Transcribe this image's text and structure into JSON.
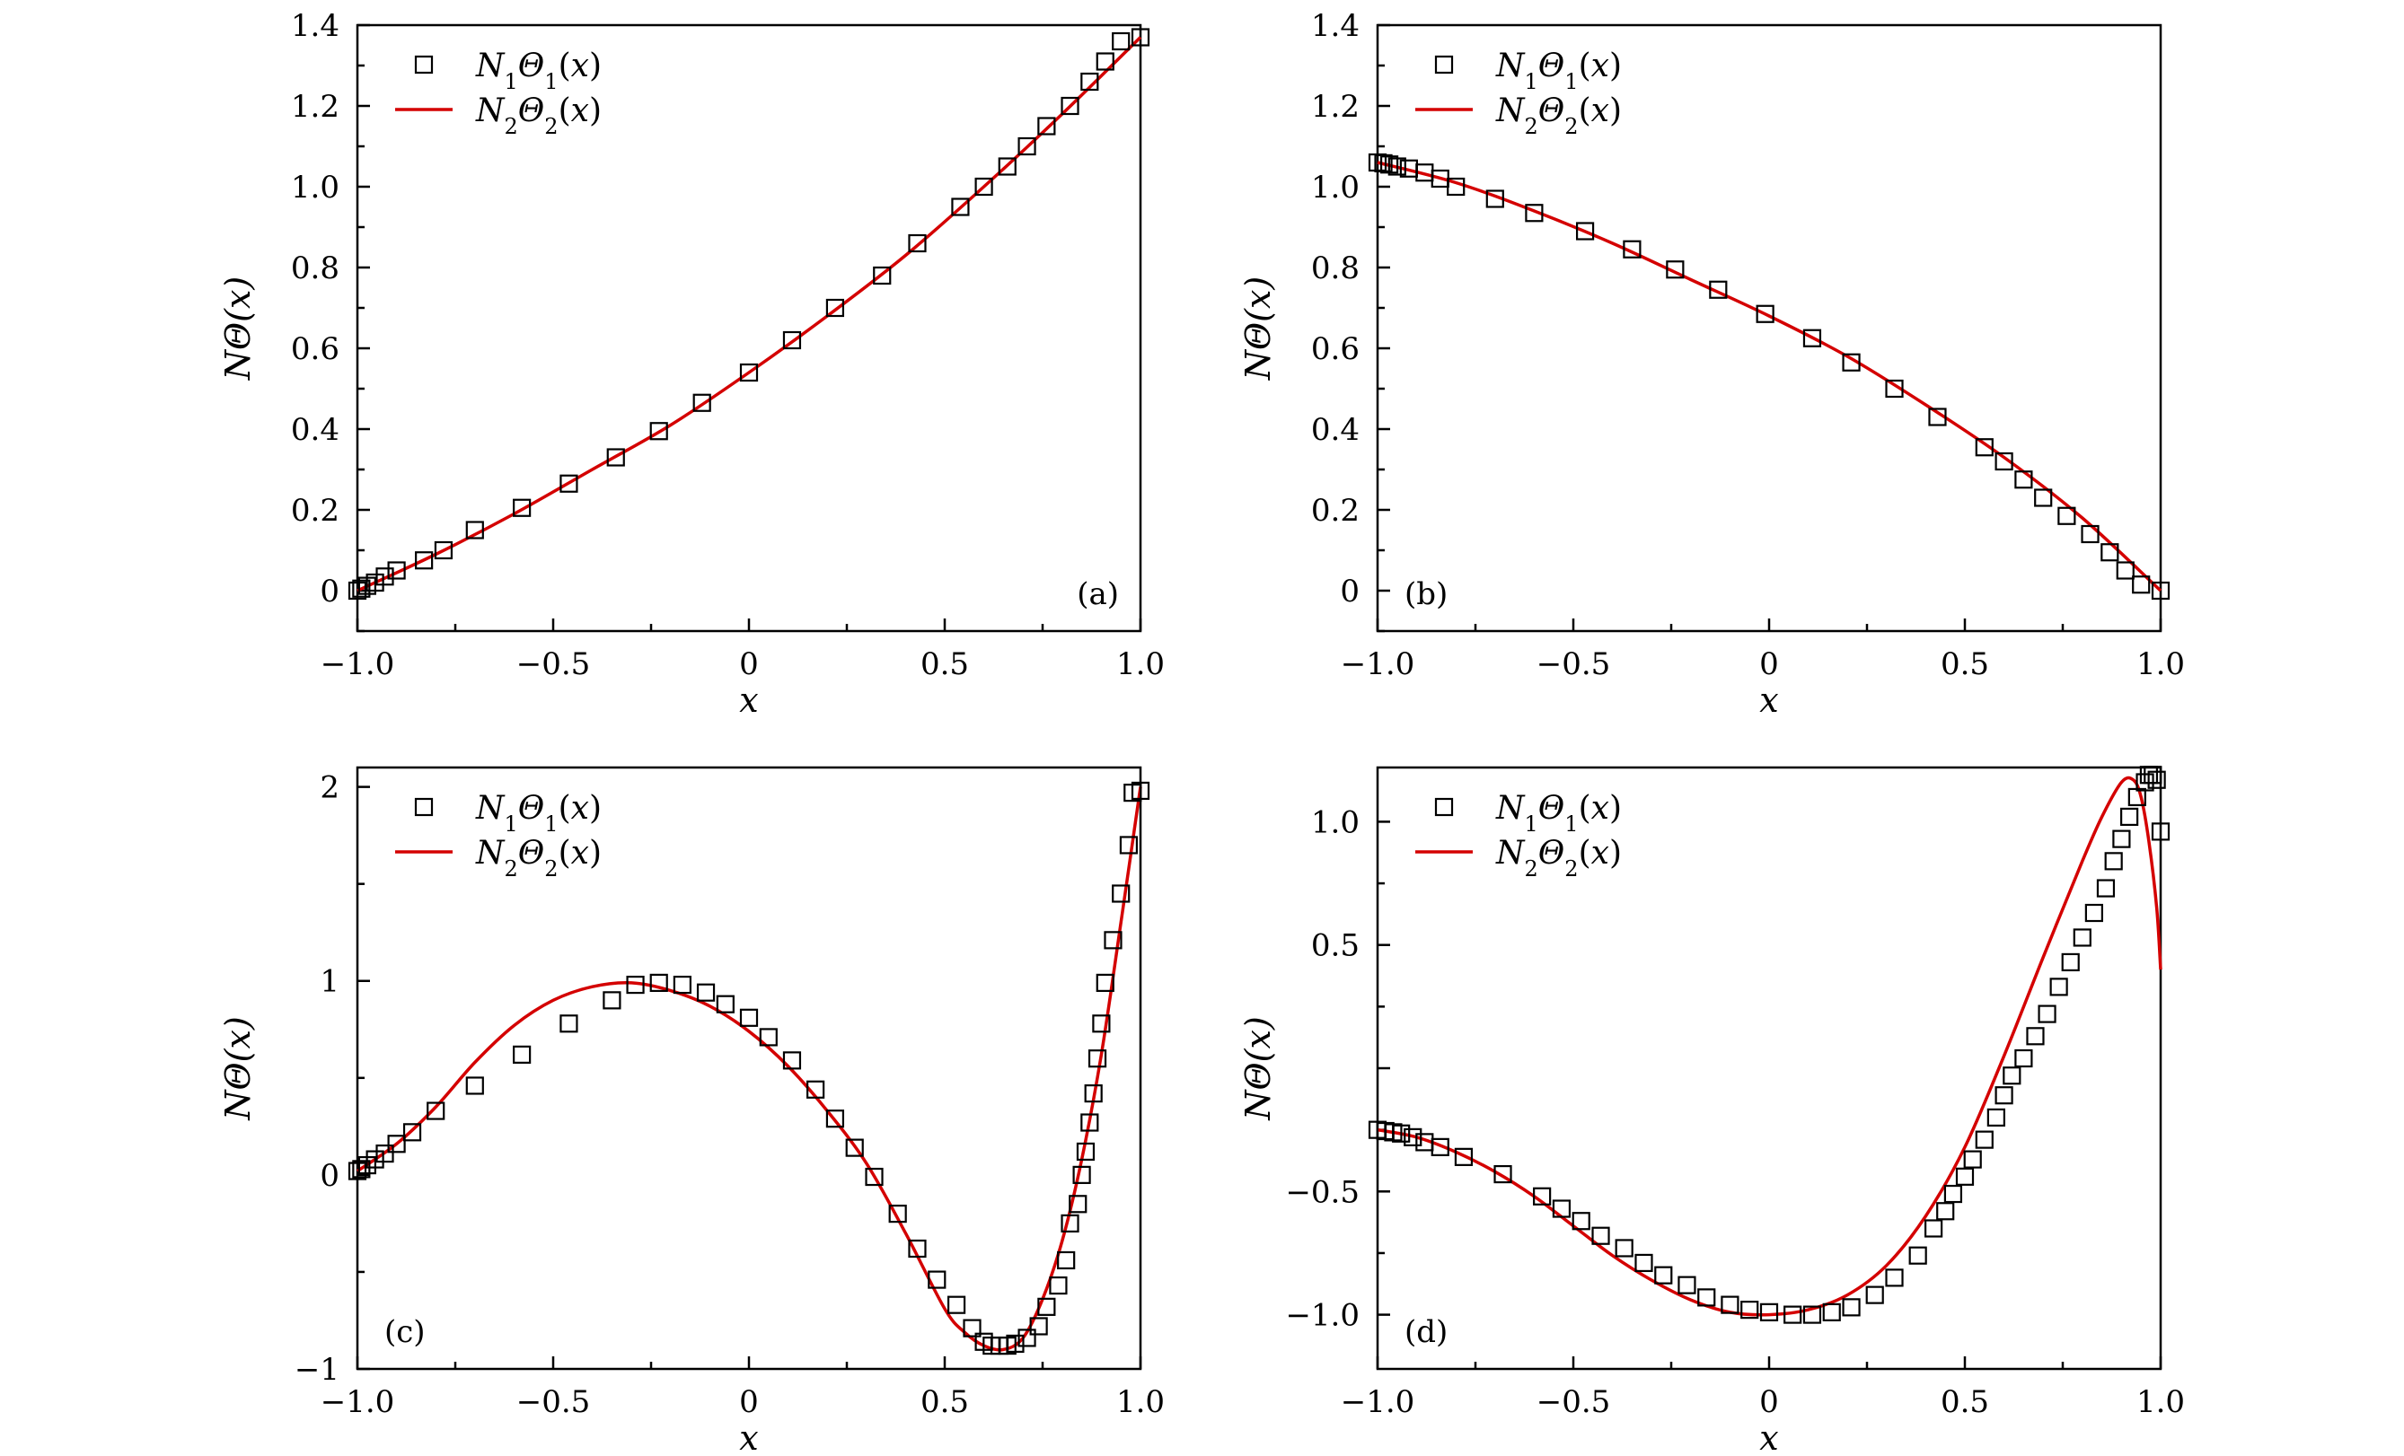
{
  "colors": {
    "curve": "#d40000",
    "marker_edge": "#000000",
    "frame": "#000000"
  },
  "legend": {
    "marker_icon": "open-square-marker-icon",
    "line_icon": "red-line-icon",
    "marker_series_html": "N<tspan baseline-shift=\"sub\" font-size=\"24\" font-style=\"normal\">1</tspan>Θ<tspan baseline-shift=\"sub\" font-size=\"24\" font-style=\"normal\">1</tspan><tspan font-style=\"normal\">(</tspan>x<tspan font-style=\"normal\">)</tspan>",
    "line_series_html": "N<tspan baseline-shift=\"sub\" font-size=\"24\" font-style=\"normal\">2</tspan>Θ<tspan baseline-shift=\"sub\" font-size=\"24\" font-style=\"normal\">2</tspan><tspan font-style=\"normal\">(</tspan>x<tspan font-style=\"normal\">)</tspan>"
  },
  "chart_data": [
    {
      "id": "a",
      "type": "line",
      "tag": "(a)",
      "xlabel": "x",
      "ylabel": "NΘ(x)",
      "xlim": [
        -1.0,
        1.0
      ],
      "ylim": [
        -0.1,
        1.4
      ],
      "xticks": [
        -1.0,
        -0.5,
        0,
        0.5,
        1.0
      ],
      "xtick_labels": [
        "−1.0",
        "−0.5",
        "0",
        "0.5",
        "1.0"
      ],
      "yticks": [
        0,
        0.2,
        0.4,
        0.6,
        0.8,
        1.0,
        1.2,
        1.4
      ],
      "ytick_labels": [
        "0",
        "0.2",
        "0.4",
        "0.6",
        "0.8",
        "1.0",
        "1.2",
        "1.4"
      ],
      "legend_position": "top-left",
      "tag_position": "bottom-right",
      "series": [
        {
          "name": "N1Θ1(x)",
          "style": "markers",
          "x": [
            -1.0,
            -0.99,
            -0.975,
            -0.955,
            -0.93,
            -0.9,
            -0.83,
            -0.78,
            -0.7,
            -0.58,
            -0.46,
            -0.34,
            -0.23,
            -0.12,
            0.0,
            0.11,
            0.22,
            0.34,
            0.43,
            0.54,
            0.6,
            0.66,
            0.71,
            0.76,
            0.82,
            0.87,
            0.91,
            0.95,
            1.0
          ],
          "y": [
            0.0,
            0.005,
            0.012,
            0.02,
            0.035,
            0.05,
            0.075,
            0.1,
            0.15,
            0.205,
            0.265,
            0.33,
            0.395,
            0.465,
            0.54,
            0.62,
            0.7,
            0.78,
            0.86,
            0.95,
            1.0,
            1.05,
            1.1,
            1.15,
            1.2,
            1.26,
            1.31,
            1.36,
            1.37
          ]
        },
        {
          "name": "N2Θ2(x)",
          "style": "line",
          "x": [
            -1.0,
            -0.8,
            -0.6,
            -0.4,
            -0.2,
            0.0,
            0.2,
            0.4,
            0.6,
            0.8,
            1.0
          ],
          "y": [
            0.0,
            0.09,
            0.19,
            0.3,
            0.41,
            0.54,
            0.68,
            0.83,
            1.0,
            1.18,
            1.37
          ]
        }
      ]
    },
    {
      "id": "b",
      "type": "line",
      "tag": "(b)",
      "xlabel": "x",
      "ylabel": "NΘ(x)",
      "xlim": [
        -1.0,
        1.0
      ],
      "ylim": [
        -0.1,
        1.4
      ],
      "xticks": [
        -1.0,
        -0.5,
        0,
        0.5,
        1.0
      ],
      "xtick_labels": [
        "−1.0",
        "−0.5",
        "0",
        "0.5",
        "1.0"
      ],
      "yticks": [
        0,
        0.2,
        0.4,
        0.6,
        0.8,
        1.0,
        1.2,
        1.4
      ],
      "ytick_labels": [
        "0",
        "0.2",
        "0.4",
        "0.6",
        "0.8",
        "1.0",
        "1.2",
        "1.4"
      ],
      "legend_position": "top-left",
      "tag_position": "bottom-left",
      "series": [
        {
          "name": "N1Θ1(x)",
          "style": "markers",
          "x": [
            -1.0,
            -0.985,
            -0.97,
            -0.95,
            -0.92,
            -0.88,
            -0.84,
            -0.8,
            -0.7,
            -0.6,
            -0.47,
            -0.35,
            -0.24,
            -0.13,
            -0.01,
            0.11,
            0.21,
            0.32,
            0.43,
            0.55,
            0.6,
            0.65,
            0.7,
            0.76,
            0.82,
            0.87,
            0.91,
            0.95,
            1.0
          ],
          "y": [
            1.06,
            1.058,
            1.055,
            1.05,
            1.045,
            1.035,
            1.02,
            1.0,
            0.97,
            0.935,
            0.89,
            0.845,
            0.795,
            0.745,
            0.685,
            0.625,
            0.565,
            0.5,
            0.43,
            0.355,
            0.32,
            0.275,
            0.23,
            0.185,
            0.14,
            0.095,
            0.05,
            0.015,
            0.0
          ]
        },
        {
          "name": "N2Θ2(x)",
          "style": "line",
          "x": [
            -1.0,
            -0.8,
            -0.6,
            -0.4,
            -0.2,
            0.0,
            0.2,
            0.4,
            0.6,
            0.8,
            1.0
          ],
          "y": [
            1.06,
            1.01,
            0.94,
            0.86,
            0.77,
            0.68,
            0.58,
            0.46,
            0.33,
            0.18,
            0.0
          ]
        }
      ]
    },
    {
      "id": "c",
      "type": "line",
      "tag": "(c)",
      "xlabel": "x",
      "ylabel": "NΘ(x)",
      "xlim": [
        -1.0,
        1.0
      ],
      "ylim": [
        -1.0,
        2.1
      ],
      "xticks": [
        -1.0,
        -0.5,
        0,
        0.5,
        1.0
      ],
      "xtick_labels": [
        "−1.0",
        "−0.5",
        "0",
        "0.5",
        "1.0"
      ],
      "yticks": [
        -1,
        0,
        1,
        2
      ],
      "ytick_labels": [
        "−1",
        "0",
        "1",
        "2"
      ],
      "legend_position": "top-left",
      "tag_position": "bottom-left",
      "series": [
        {
          "name": "N1Θ1(x)",
          "style": "markers",
          "x": [
            -1.0,
            -0.99,
            -0.975,
            -0.955,
            -0.93,
            -0.9,
            -0.86,
            -0.8,
            -0.7,
            -0.58,
            -0.46,
            -0.35,
            -0.29,
            -0.23,
            -0.17,
            -0.11,
            -0.06,
            0.0,
            0.05,
            0.11,
            0.17,
            0.22,
            0.27,
            0.32,
            0.38,
            0.43,
            0.48,
            0.53,
            0.57,
            0.6,
            0.62,
            0.64,
            0.66,
            0.68,
            0.71,
            0.74,
            0.76,
            0.79,
            0.81,
            0.82,
            0.84,
            0.85,
            0.86,
            0.87,
            0.88,
            0.89,
            0.9,
            0.91,
            0.93,
            0.95,
            0.97,
            0.98,
            1.0
          ],
          "y": [
            0.02,
            0.03,
            0.05,
            0.08,
            0.11,
            0.16,
            0.22,
            0.33,
            0.46,
            0.62,
            0.78,
            0.9,
            0.98,
            0.99,
            0.98,
            0.94,
            0.88,
            0.81,
            0.71,
            0.59,
            0.44,
            0.29,
            0.14,
            -0.01,
            -0.2,
            -0.38,
            -0.54,
            -0.67,
            -0.79,
            -0.86,
            -0.88,
            -0.88,
            -0.88,
            -0.87,
            -0.84,
            -0.78,
            -0.68,
            -0.57,
            -0.44,
            -0.25,
            -0.15,
            0.0,
            0.12,
            0.27,
            0.42,
            0.6,
            0.78,
            0.99,
            1.21,
            1.45,
            1.7,
            1.97,
            1.98
          ]
        },
        {
          "name": "N2Θ2(x)",
          "style": "line",
          "x": [
            -1.0,
            -0.9,
            -0.8,
            -0.7,
            -0.6,
            -0.5,
            -0.4,
            -0.3,
            -0.2,
            -0.1,
            0.0,
            0.1,
            0.2,
            0.3,
            0.4,
            0.5,
            0.55,
            0.6,
            0.65,
            0.7,
            0.75,
            0.8,
            0.85,
            0.9,
            0.95,
            1.0
          ],
          "y": [
            0.02,
            0.16,
            0.35,
            0.58,
            0.77,
            0.9,
            0.97,
            0.99,
            0.95,
            0.87,
            0.74,
            0.56,
            0.33,
            0.06,
            -0.3,
            -0.69,
            -0.81,
            -0.88,
            -0.9,
            -0.84,
            -0.64,
            -0.34,
            0.08,
            0.62,
            1.3,
            2.0
          ]
        }
      ]
    },
    {
      "id": "d",
      "type": "line",
      "tag": "(d)",
      "xlabel": "x",
      "ylabel": "NΘ(x)",
      "xlim": [
        -1.0,
        1.0
      ],
      "ylim": [
        -1.22,
        1.22
      ],
      "xticks": [
        -1.0,
        -0.5,
        0,
        0.5,
        1.0
      ],
      "xtick_labels": [
        "−1.0",
        "−0.5",
        "0",
        "0.5",
        "1.0"
      ],
      "yticks": [
        -1.0,
        -0.5,
        0.5,
        1.0
      ],
      "ytick_labels": [
        "−1.0",
        "−0.5",
        "0.5",
        "1.0"
      ],
      "legend_position": "top-left",
      "tag_position": "bottom-left",
      "series": [
        {
          "name": "N1Θ1(x)",
          "style": "markers",
          "x": [
            -1.0,
            -0.98,
            -0.96,
            -0.94,
            -0.91,
            -0.88,
            -0.84,
            -0.78,
            -0.68,
            -0.58,
            -0.53,
            -0.48,
            -0.43,
            -0.37,
            -0.32,
            -0.27,
            -0.21,
            -0.16,
            -0.1,
            -0.05,
            0.0,
            0.06,
            0.11,
            0.16,
            0.21,
            0.27,
            0.32,
            0.38,
            0.42,
            0.45,
            0.47,
            0.5,
            0.52,
            0.55,
            0.58,
            0.6,
            0.62,
            0.65,
            0.68,
            0.71,
            0.74,
            0.77,
            0.8,
            0.83,
            0.86,
            0.88,
            0.9,
            0.92,
            0.94,
            0.96,
            0.97,
            0.98,
            0.99,
            1.0
          ],
          "y": [
            -0.25,
            -0.255,
            -0.26,
            -0.265,
            -0.28,
            -0.3,
            -0.32,
            -0.36,
            -0.43,
            -0.52,
            -0.57,
            -0.62,
            -0.68,
            -0.73,
            -0.79,
            -0.84,
            -0.88,
            -0.93,
            -0.96,
            -0.98,
            -0.99,
            -1.0,
            -1.0,
            -0.99,
            -0.97,
            -0.92,
            -0.85,
            -0.76,
            -0.65,
            -0.58,
            -0.51,
            -0.44,
            -0.37,
            -0.29,
            -0.2,
            -0.11,
            -0.03,
            0.04,
            0.13,
            0.22,
            0.33,
            0.43,
            0.53,
            0.63,
            0.73,
            0.84,
            0.93,
            1.02,
            1.1,
            1.16,
            1.19,
            1.19,
            1.17,
            0.96
          ]
        },
        {
          "name": "N2Θ2(x)",
          "style": "line",
          "x": [
            -1.0,
            -0.9,
            -0.8,
            -0.7,
            -0.6,
            -0.5,
            -0.4,
            -0.3,
            -0.2,
            -0.1,
            0.0,
            0.1,
            0.2,
            0.3,
            0.4,
            0.5,
            0.6,
            0.7,
            0.8,
            0.85,
            0.9,
            0.93,
            0.95,
            0.97,
            0.99,
            1.0
          ],
          "y": [
            -0.25,
            -0.28,
            -0.34,
            -0.42,
            -0.52,
            -0.64,
            -0.76,
            -0.86,
            -0.94,
            -0.99,
            -1.0,
            -0.98,
            -0.92,
            -0.8,
            -0.6,
            -0.32,
            0.05,
            0.45,
            0.84,
            1.02,
            1.16,
            1.17,
            1.1,
            0.92,
            0.65,
            0.4
          ]
        }
      ]
    }
  ]
}
